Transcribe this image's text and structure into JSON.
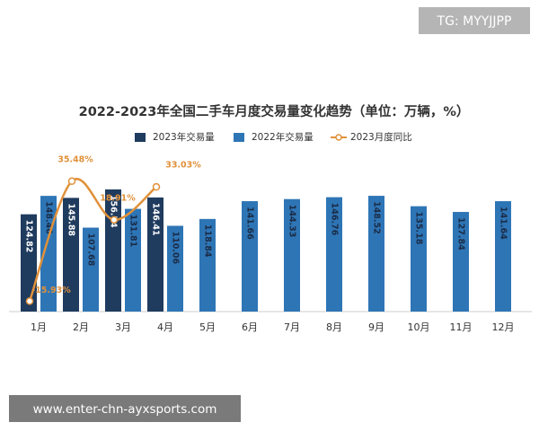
{
  "chart_data": {
    "type": "bar",
    "title": "2022-2023年全国二手车月度交易量变化趋势（单位：万辆，%）",
    "categories": [
      "1月",
      "2月",
      "3月",
      "4月",
      "5月",
      "6月",
      "7月",
      "8月",
      "9月",
      "10月",
      "11月",
      "12月"
    ],
    "series": [
      {
        "name": "2023年交易量",
        "color": "#1f3b5e",
        "values": [
          124.82,
          145.88,
          156.74,
          146.41,
          null,
          null,
          null,
          null,
          null,
          null,
          null,
          null
        ]
      },
      {
        "name": "2022年交易量",
        "color": "#2e75b6",
        "values": [
          148.46,
          107.68,
          131.81,
          110.06,
          118.84,
          141.66,
          144.33,
          146.76,
          148.52,
          135.18,
          127.84,
          141.64
        ]
      },
      {
        "name": "2023月度同比",
        "type": "line",
        "axis": "y2",
        "color": "#e0913a",
        "values": [
          -15.93,
          35.48,
          18.91,
          33.03,
          null,
          null,
          null,
          null,
          null,
          null,
          null,
          null
        ],
        "value_labels": [
          "-15.93%",
          "35.48%",
          "18.91%",
          "33.03%",
          null,
          null,
          null,
          null,
          null,
          null,
          null,
          null
        ]
      }
    ],
    "legend": "top"
  },
  "watermarks": [
    "TG: MYYJJPP",
    "www.enter-chn-ayxsports.com"
  ]
}
